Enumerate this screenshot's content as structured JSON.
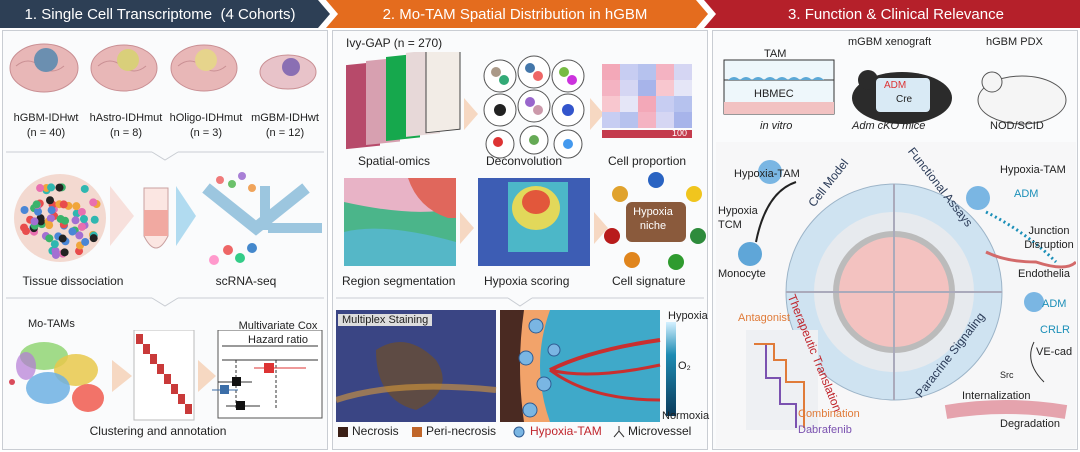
{
  "headers": {
    "h1": "1. Single Cell Transcriptome  (4 Cohorts)",
    "h2": "2. Mo-TAM Spatial Distribution in hGBM",
    "h3": "3. Function & Clinical Relevance"
  },
  "colors": {
    "h1": "#2d3f55",
    "h2": "#e46c1e",
    "h3": "#b5202a"
  },
  "cohorts": [
    {
      "name": "hGBM-IDHwt",
      "n": "(n = 40)"
    },
    {
      "name": "hAstro-IDHmut",
      "n": "(n = 8)"
    },
    {
      "name": "hOligo-IDHmut",
      "n": "(n = 3)"
    },
    {
      "name": "mGBM-IDHwt",
      "n": "(n = 12)"
    }
  ],
  "panel1": {
    "tissue_dissociation": "Tissue dissociation",
    "scrna": "scRNA-seq",
    "motams": "Mo-TAMs",
    "clustering": "Clustering and annotation",
    "cox_title": "Multivariate Cox",
    "hazard": "Hazard ratio"
  },
  "panel2": {
    "ivy": "Ivy-GAP (n = 270)",
    "spatial": "Spatial-omics",
    "deconv": "Deconvolution",
    "proportion": "Cell proportion",
    "proportion_max": "100",
    "region": "Region segmentation",
    "hypoxia_scoring": "Hypoxia scoring",
    "signature": "Cell signature",
    "niche": "Hypoxia niche",
    "multiplex": "Multiplex Staining",
    "hypoxia": "Hypoxia",
    "o2": "O₂",
    "normoxia": "Normoxia",
    "legend": [
      "Necrosis",
      "Peri-necrosis",
      "Hypoxia-TAM",
      "Microvessel"
    ]
  },
  "panel3": {
    "tam": "TAM",
    "hbmec": "HBMEC",
    "invitro": "in vitro",
    "xeno": "mGBM xenograft",
    "adm": "ADM",
    "cre": "Cre",
    "ckm": "Adm cKO mice",
    "pdx": "hGBM PDX",
    "nod": "NOD/SCID",
    "hypoxia_tam": "Hypoxia-TAM",
    "hypoxia_tcm": "Hypoxia TCM",
    "monocyte": "Monocyte",
    "cell_model": "Cell Model",
    "functional": "Functional Assays",
    "therapeutic": "Therapeutic Translation",
    "paracrine": "Paracrine Signaling",
    "hypoxia_tam2": "Hypoxia-TAM",
    "adm2": "ADM",
    "junction": "Junction Disruption",
    "endothelia": "Endothelia",
    "antagonist": "Antagonist",
    "combination": "Combination",
    "dabrafenib": "Dabrafenib",
    "adm3": "ADM",
    "crlr": "CRLR",
    "vecad": "VE-cad",
    "src": "Src",
    "internalization": "Internalization",
    "degradation": "Degradation"
  }
}
